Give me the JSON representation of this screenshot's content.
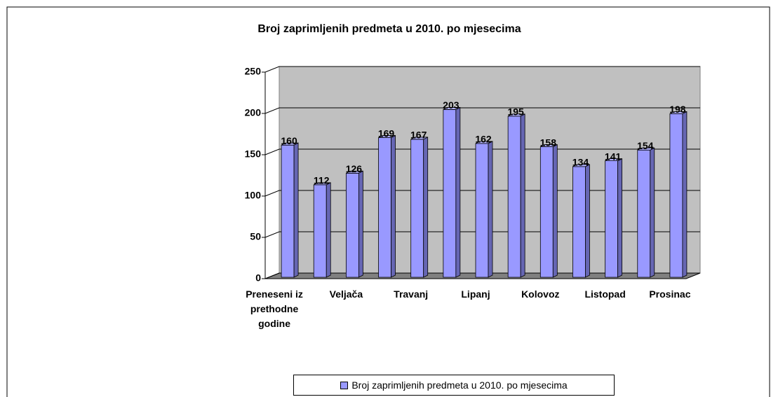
{
  "chart_data": {
    "type": "bar",
    "title": "Broj zaprimljenih predmeta u 2010. po mjesecima",
    "categories": [
      "Preneseni iz prethodne godine",
      null,
      "Veljača",
      null,
      "Travanj",
      null,
      "Lipanj",
      null,
      "Kolovoz",
      null,
      "Listopad",
      null,
      "Prosinac"
    ],
    "series": [
      {
        "name": "Broj zaprimljenih predmeta u 2010. po mjesecima",
        "color": "#9999ff",
        "values": [
          160,
          112,
          126,
          169,
          167,
          203,
          162,
          195,
          158,
          134,
          141,
          154,
          198
        ]
      }
    ],
    "ylim": [
      0,
      250
    ],
    "yticks": [
      0,
      50,
      100,
      150,
      200,
      250
    ],
    "grid": true,
    "legend": "bottom"
  }
}
